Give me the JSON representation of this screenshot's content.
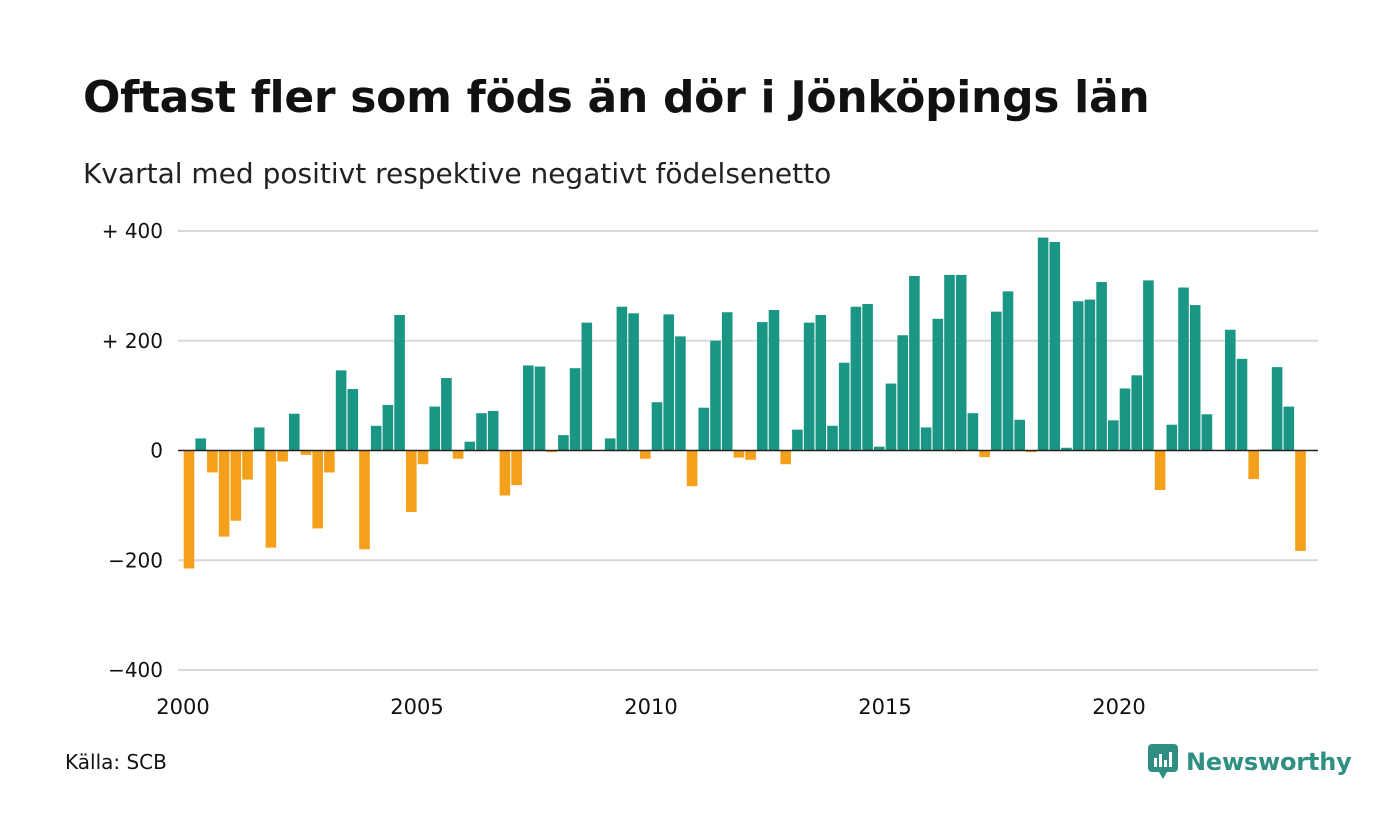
{
  "title": "Oftast fler som föds än dör i Jönköpings län",
  "subtitle": "Kvartal med positivt respektive negativt födelsenetto",
  "source": "Källa: SCB",
  "brand": "Newsworthy",
  "colors": {
    "positive": "#1a9685",
    "negative": "#f5a01a",
    "grid": "#d9d9d9",
    "axis": "#222222",
    "brand": "#2f8f82"
  },
  "chart_data": {
    "type": "bar",
    "start_year": 2000,
    "periods_per_year": 4,
    "ylim": [
      -400,
      400
    ],
    "yticks": [
      {
        "value": 400,
        "label": "+ 400"
      },
      {
        "value": 200,
        "label": "+ 200"
      },
      {
        "value": 0,
        "label": "0"
      },
      {
        "value": -200,
        "label": "−200"
      },
      {
        "value": -400,
        "label": "−400"
      }
    ],
    "xticks": [
      "2000",
      "2005",
      "2010",
      "2015",
      "2020"
    ],
    "values": [
      -215,
      22,
      -40,
      -157,
      -128,
      -53,
      42,
      -177,
      -20,
      67,
      -8,
      -142,
      -40,
      146,
      112,
      -180,
      45,
      83,
      247,
      -112,
      -25,
      80,
      132,
      -15,
      16,
      68,
      72,
      -82,
      -63,
      155,
      153,
      -3,
      28,
      150,
      233,
      0,
      22,
      262,
      250,
      -15,
      88,
      248,
      208,
      -65,
      78,
      200,
      252,
      -13,
      -17,
      234,
      256,
      -25,
      38,
      233,
      247,
      45,
      160,
      262,
      267,
      7,
      122,
      210,
      318,
      42,
      240,
      320,
      320,
      68,
      -12,
      253,
      290,
      56,
      -3,
      388,
      380,
      5,
      272,
      275,
      307,
      55,
      113,
      137,
      310,
      -72,
      47,
      297,
      265,
      66,
      0,
      220,
      167,
      -52,
      2,
      152,
      80,
      -183
    ]
  }
}
